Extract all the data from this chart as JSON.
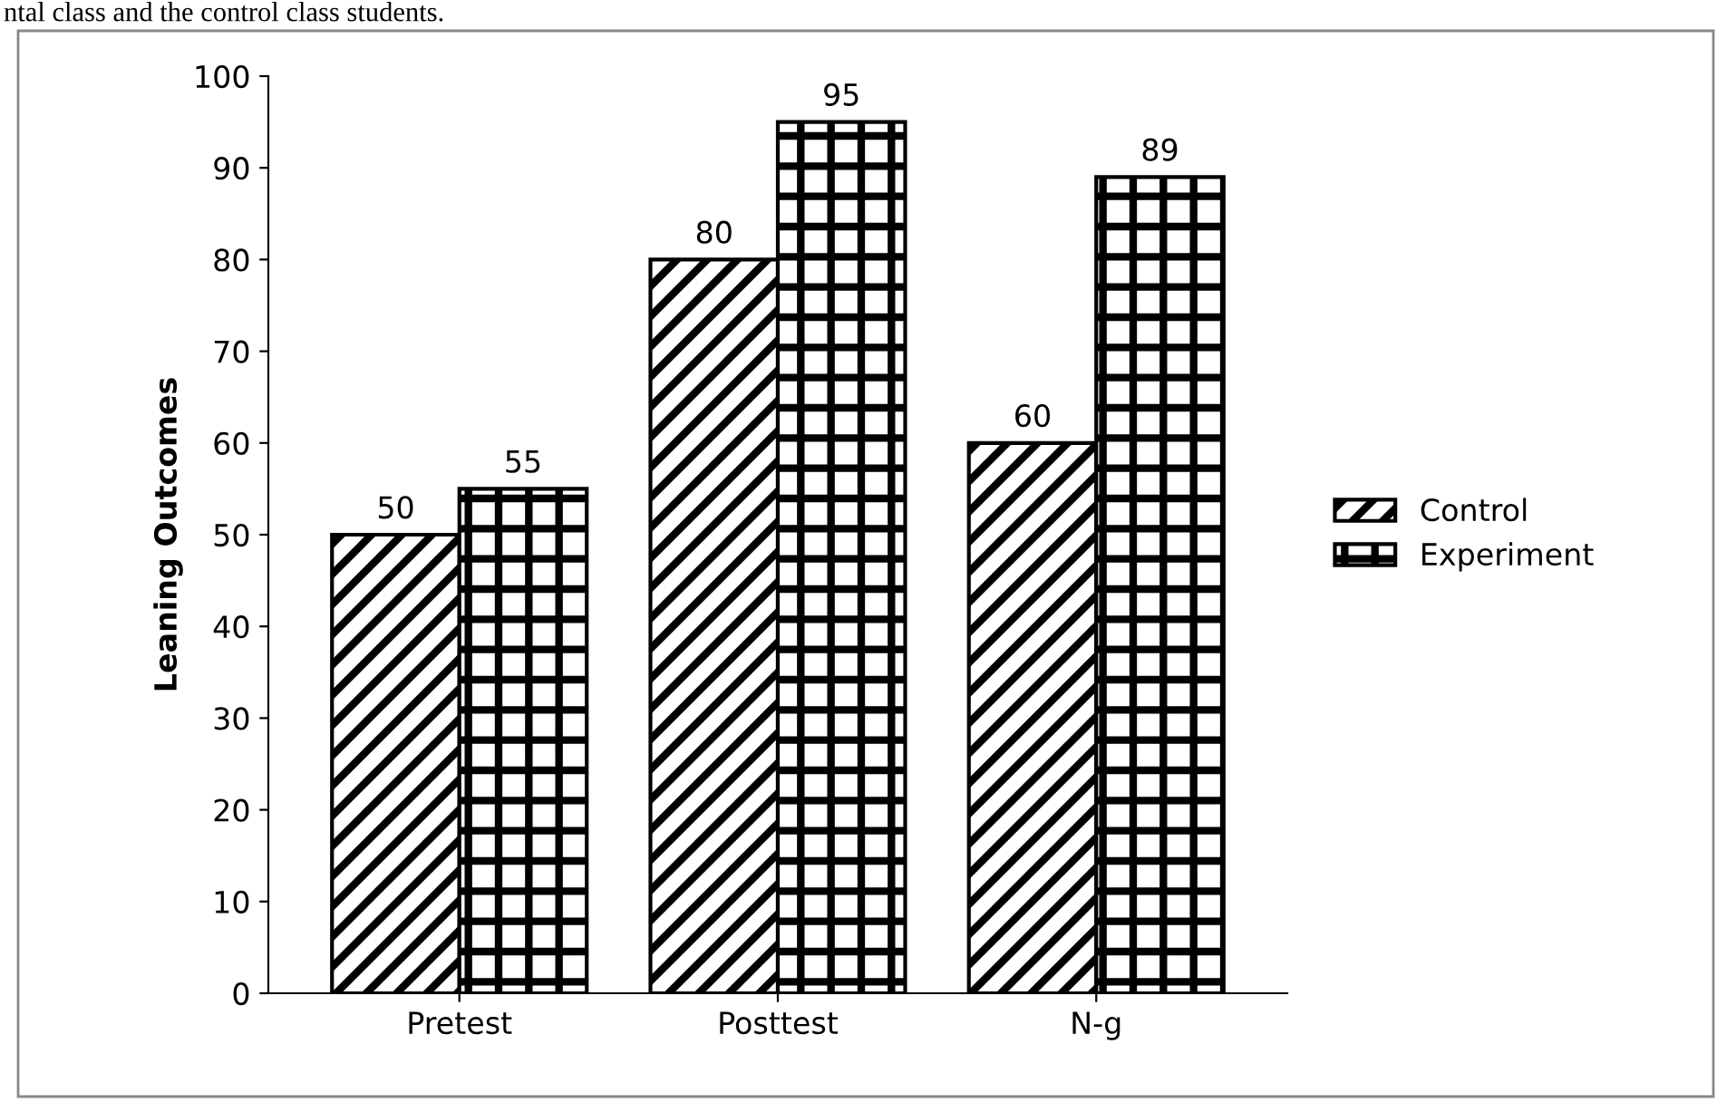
{
  "chart_data": {
    "type": "bar",
    "ylabel": "Leaning Outcomes",
    "categories": [
      "Pretest",
      "Posttest",
      "N-g"
    ],
    "series": [
      {
        "name": "Control",
        "color": "#000000",
        "values": [
          50,
          80,
          60
        ]
      },
      {
        "name": "Experiment",
        "color": "#000000",
        "values": [
          55,
          95,
          89
        ]
      }
    ],
    "ylim": [
      0,
      100
    ],
    "yticks": [
      0,
      10,
      20,
      30,
      40,
      50,
      60,
      70,
      80,
      90,
      100
    ],
    "data_labels": true,
    "grid": false,
    "legend": "right",
    "annotations": [
      "ntal class and the control class students."
    ]
  }
}
